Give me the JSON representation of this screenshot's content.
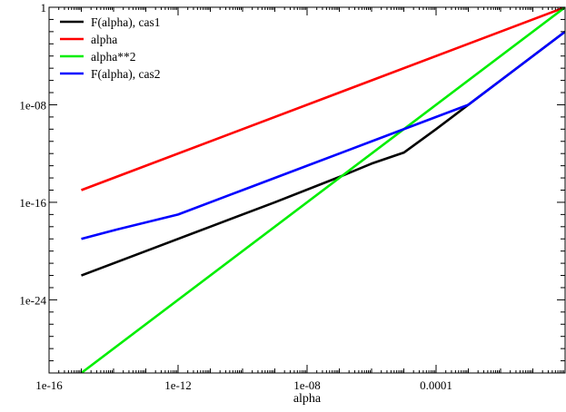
{
  "chart_data": {
    "type": "line",
    "xlabel": "alpha",
    "ylabel": "",
    "title": "",
    "x_scale": "log",
    "y_scale": "log",
    "xlim": [
      1e-16,
      1
    ],
    "ylim": [
      1e-30,
      1
    ],
    "x_ticks": [
      {
        "value": 1e-16,
        "label": "1e-16"
      },
      {
        "value": 1e-12,
        "label": "1e-12"
      },
      {
        "value": 1e-08,
        "label": "1e-08"
      },
      {
        "value": 0.0001,
        "label": "0.0001"
      }
    ],
    "y_ticks": [
      {
        "value": 1,
        "label": "1"
      },
      {
        "value": 1e-08,
        "label": "1e-08"
      },
      {
        "value": 1e-16,
        "label": "1e-16"
      },
      {
        "value": 1e-24,
        "label": "1e-24"
      }
    ],
    "grid": false,
    "legend_position": "top-left",
    "series": [
      {
        "name": "F(alpha), cas1",
        "color": "#000000",
        "points": [
          [
            1e-15,
            1e-22
          ],
          [
            1e-13,
            1e-20
          ],
          [
            1e-11,
            1e-18
          ],
          [
            1e-09,
            1e-16
          ],
          [
            1e-07,
            1.2e-14
          ],
          [
            1e-06,
            1.5e-13
          ],
          [
            1e-05,
            1.2e-12
          ],
          [
            0.0001,
            1e-10
          ],
          [
            0.001,
            1e-08
          ],
          [
            0.01,
            1e-06
          ],
          [
            0.1,
            0.0001
          ],
          [
            1,
            0.01
          ]
        ]
      },
      {
        "name": "alpha",
        "color": "#ff0000",
        "points": [
          [
            1e-15,
            1e-15
          ],
          [
            1,
            1
          ]
        ]
      },
      {
        "name": "alpha**2",
        "color": "#00ee00",
        "points": [
          [
            1e-15,
            1e-30
          ],
          [
            1,
            1
          ]
        ]
      },
      {
        "name": "F(alpha), cas2",
        "color": "#0000ff",
        "points": [
          [
            1e-15,
            1e-19
          ],
          [
            1e-14,
            5e-19
          ],
          [
            1e-12,
            1e-17
          ],
          [
            1e-10,
            1e-15
          ],
          [
            1e-08,
            1e-13
          ],
          [
            1e-06,
            1e-11
          ],
          [
            0.0001,
            1e-09
          ],
          [
            0.001,
            1e-08
          ],
          [
            0.01,
            1e-06
          ],
          [
            0.1,
            0.0001
          ],
          [
            1,
            0.01
          ]
        ]
      }
    ]
  }
}
